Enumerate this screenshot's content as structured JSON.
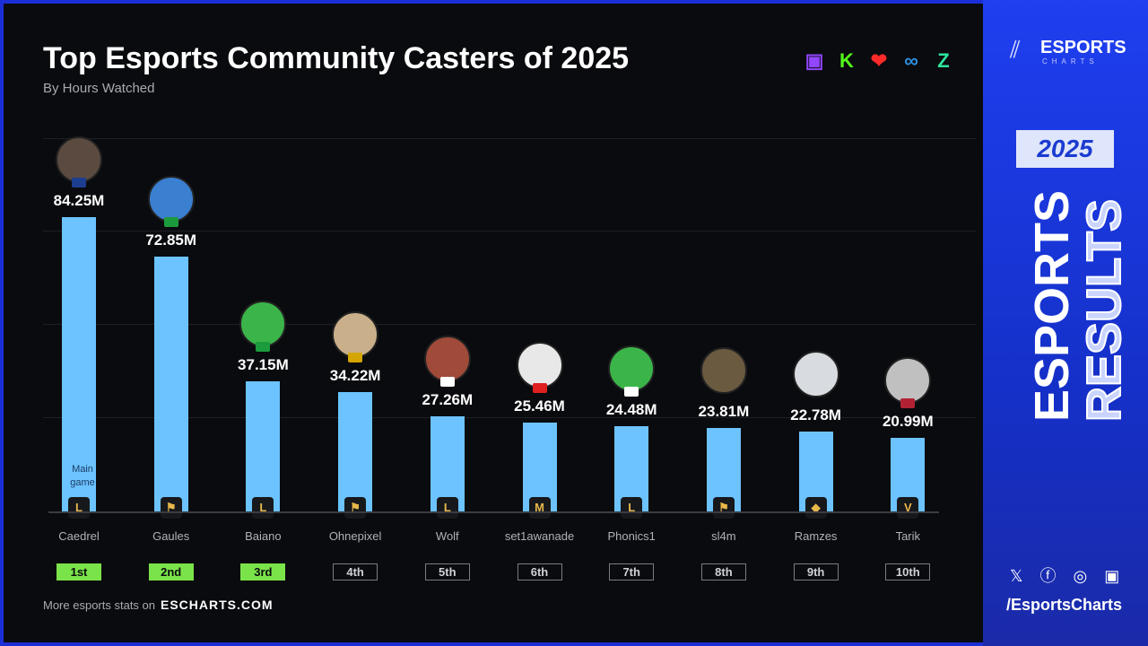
{
  "chart_data": {
    "type": "bar",
    "title": "Top Esports Community Casters of 2025",
    "subtitle": "By Hours Watched",
    "categories": [
      "Caedrel",
      "Gaules",
      "Baiano",
      "Ohnepixel",
      "Wolf",
      "set1awanade",
      "Phonics1",
      "sl4m",
      "Ramzes",
      "Tarik"
    ],
    "values": [
      84.25,
      72.85,
      37.15,
      34.22,
      27.26,
      25.46,
      24.48,
      23.81,
      22.78,
      20.99
    ],
    "value_labels": [
      "84.25M",
      "72.85M",
      "37.15M",
      "34.22M",
      "27.26M",
      "25.46M",
      "24.48M",
      "23.81M",
      "22.78M",
      "20.99M"
    ],
    "ranks": [
      "1st",
      "2nd",
      "3rd",
      "4th",
      "5th",
      "6th",
      "7th",
      "8th",
      "9th",
      "10th"
    ],
    "main_game": [
      "League of Legends",
      "Counter-Strike",
      "League of Legends",
      "Counter-Strike",
      "League of Legends",
      "Mobile Legends",
      "League of Legends",
      "Counter-Strike",
      "Dota 2",
      "Valorant"
    ],
    "flags": [
      "UK",
      "BR",
      "BR",
      "DE",
      "KR",
      "ID",
      "KR",
      "",
      "",
      "US"
    ],
    "main_game_label": "Main game",
    "unit": "M",
    "ylim": [
      0,
      110
    ],
    "grid": true,
    "bar_color": "#6cc3ff",
    "top3_rank_color": "#7be34a"
  },
  "platforms": [
    "twitch-icon",
    "kick-icon",
    "vk-live-icon",
    "infinity-icon",
    "z-icon"
  ],
  "footer": {
    "text": "More esports stats on",
    "link": "ESCHARTS.COM"
  },
  "side": {
    "brand": "ESPORTS",
    "brand_sub": "CHARTS",
    "year": "2025",
    "word1": "ESPORTS",
    "word2": "RESULTS",
    "handle": "/EsportsCharts"
  }
}
